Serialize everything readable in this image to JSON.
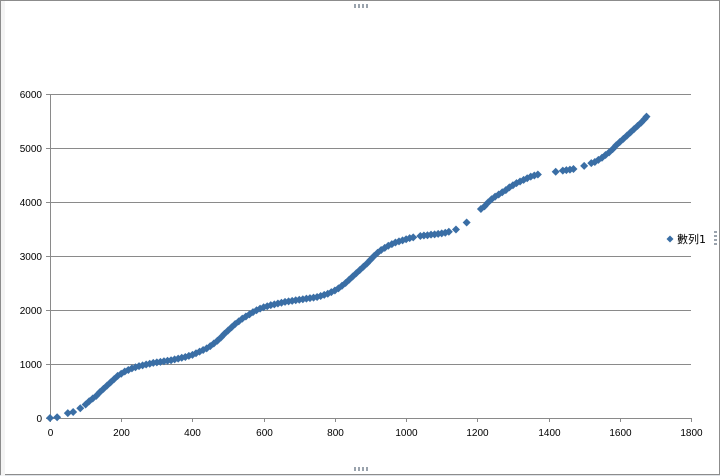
{
  "chart_data": {
    "type": "scatter",
    "xlim": [
      0,
      1800
    ],
    "ylim": [
      0,
      6000
    ],
    "x_ticks": [
      0,
      200,
      400,
      600,
      800,
      1000,
      1200,
      1400,
      1600,
      1800
    ],
    "y_ticks": [
      0,
      1000,
      2000,
      3000,
      4000,
      5000,
      6000
    ],
    "grid": {
      "horizontal": true,
      "vertical": false
    },
    "legend_position": "right",
    "marker": "diamond",
    "series": [
      {
        "name": "數列1",
        "color": "#3a6ea5",
        "points": [
          [
            0,
            0
          ],
          [
            20,
            15
          ],
          [
            50,
            90
          ],
          [
            65,
            110
          ],
          [
            85,
            180
          ],
          [
            100,
            250
          ],
          [
            110,
            310
          ],
          [
            120,
            360
          ],
          [
            130,
            410
          ],
          [
            140,
            480
          ],
          [
            150,
            540
          ],
          [
            160,
            600
          ],
          [
            170,
            660
          ],
          [
            180,
            720
          ],
          [
            190,
            780
          ],
          [
            200,
            820
          ],
          [
            210,
            860
          ],
          [
            220,
            890
          ],
          [
            230,
            920
          ],
          [
            240,
            940
          ],
          [
            250,
            960
          ],
          [
            260,
            975
          ],
          [
            270,
            990
          ],
          [
            280,
            1005
          ],
          [
            290,
            1020
          ],
          [
            300,
            1030
          ],
          [
            310,
            1040
          ],
          [
            320,
            1050
          ],
          [
            330,
            1060
          ],
          [
            340,
            1070
          ],
          [
            350,
            1085
          ],
          [
            360,
            1100
          ],
          [
            370,
            1115
          ],
          [
            380,
            1130
          ],
          [
            390,
            1150
          ],
          [
            400,
            1170
          ],
          [
            410,
            1200
          ],
          [
            420,
            1230
          ],
          [
            430,
            1260
          ],
          [
            440,
            1290
          ],
          [
            450,
            1330
          ],
          [
            460,
            1380
          ],
          [
            470,
            1430
          ],
          [
            480,
            1490
          ],
          [
            490,
            1560
          ],
          [
            500,
            1620
          ],
          [
            510,
            1680
          ],
          [
            520,
            1740
          ],
          [
            530,
            1790
          ],
          [
            540,
            1840
          ],
          [
            550,
            1880
          ],
          [
            560,
            1920
          ],
          [
            570,
            1960
          ],
          [
            580,
            1995
          ],
          [
            590,
            2025
          ],
          [
            600,
            2050
          ],
          [
            610,
            2070
          ],
          [
            620,
            2090
          ],
          [
            630,
            2105
          ],
          [
            640,
            2120
          ],
          [
            650,
            2135
          ],
          [
            660,
            2150
          ],
          [
            670,
            2160
          ],
          [
            680,
            2170
          ],
          [
            690,
            2180
          ],
          [
            700,
            2190
          ],
          [
            710,
            2200
          ],
          [
            720,
            2210
          ],
          [
            730,
            2220
          ],
          [
            740,
            2230
          ],
          [
            750,
            2240
          ],
          [
            760,
            2260
          ],
          [
            770,
            2280
          ],
          [
            780,
            2300
          ],
          [
            790,
            2330
          ],
          [
            800,
            2360
          ],
          [
            810,
            2400
          ],
          [
            820,
            2450
          ],
          [
            830,
            2500
          ],
          [
            840,
            2560
          ],
          [
            850,
            2620
          ],
          [
            860,
            2680
          ],
          [
            870,
            2740
          ],
          [
            880,
            2800
          ],
          [
            890,
            2860
          ],
          [
            900,
            2930
          ],
          [
            910,
            3000
          ],
          [
            920,
            3060
          ],
          [
            930,
            3110
          ],
          [
            940,
            3150
          ],
          [
            950,
            3190
          ],
          [
            960,
            3220
          ],
          [
            970,
            3250
          ],
          [
            980,
            3270
          ],
          [
            990,
            3290
          ],
          [
            1000,
            3310
          ],
          [
            1010,
            3330
          ],
          [
            1020,
            3345
          ],
          [
            1040,
            3370
          ],
          [
            1050,
            3380
          ],
          [
            1060,
            3385
          ],
          [
            1070,
            3395
          ],
          [
            1080,
            3400
          ],
          [
            1090,
            3410
          ],
          [
            1100,
            3420
          ],
          [
            1110,
            3430
          ],
          [
            1120,
            3450
          ],
          [
            1140,
            3490
          ],
          [
            1170,
            3620
          ],
          [
            1210,
            3870
          ],
          [
            1220,
            3920
          ],
          [
            1230,
            3990
          ],
          [
            1240,
            4050
          ],
          [
            1250,
            4100
          ],
          [
            1260,
            4140
          ],
          [
            1270,
            4180
          ],
          [
            1280,
            4220
          ],
          [
            1290,
            4270
          ],
          [
            1300,
            4310
          ],
          [
            1310,
            4350
          ],
          [
            1320,
            4380
          ],
          [
            1330,
            4410
          ],
          [
            1340,
            4440
          ],
          [
            1350,
            4470
          ],
          [
            1360,
            4490
          ],
          [
            1370,
            4510
          ],
          [
            1420,
            4560
          ],
          [
            1440,
            4580
          ],
          [
            1450,
            4590
          ],
          [
            1460,
            4600
          ],
          [
            1470,
            4610
          ],
          [
            1500,
            4670
          ],
          [
            1520,
            4720
          ],
          [
            1530,
            4740
          ],
          [
            1540,
            4780
          ],
          [
            1550,
            4820
          ],
          [
            1560,
            4870
          ],
          [
            1570,
            4920
          ],
          [
            1580,
            4980
          ],
          [
            1590,
            5050
          ],
          [
            1600,
            5110
          ],
          [
            1610,
            5170
          ],
          [
            1620,
            5230
          ],
          [
            1630,
            5290
          ],
          [
            1640,
            5350
          ],
          [
            1650,
            5410
          ],
          [
            1660,
            5470
          ],
          [
            1670,
            5540
          ],
          [
            1675,
            5580
          ]
        ]
      }
    ]
  }
}
